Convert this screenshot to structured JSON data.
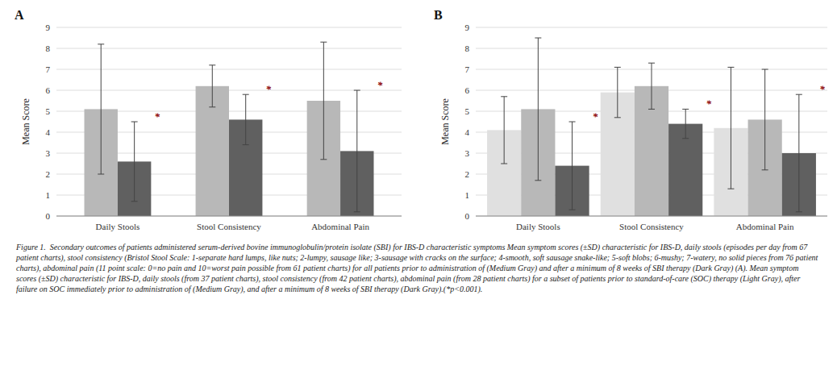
{
  "chart_data": [
    {
      "type": "bar",
      "title": "A",
      "categories": [
        "Daily Stools",
        "Stool Consistency",
        "Abdominal Pain"
      ],
      "series": [
        {
          "color": "#b8b8b8",
          "values": [
            5.1,
            6.2,
            5.5
          ],
          "errors": [
            3.1,
            1.0,
            2.8
          ]
        },
        {
          "color": "#606060",
          "values": [
            2.6,
            4.6,
            3.1
          ],
          "errors": [
            1.9,
            1.2,
            2.9
          ]
        }
      ],
      "y_label": "Mean Score",
      "ylim": [
        0,
        9
      ],
      "yticks": [
        0,
        1,
        2,
        3,
        4,
        5,
        6,
        7,
        8,
        9
      ],
      "grid": true,
      "annotations": [
        {
          "text": "*",
          "color": "#8B0000",
          "series": 1,
          "category": 0
        },
        {
          "text": "*",
          "color": "#8B0000",
          "series": 1,
          "category": 1
        },
        {
          "text": "*",
          "color": "#8B0000",
          "series": 1,
          "category": 2
        }
      ]
    },
    {
      "type": "bar",
      "title": "B",
      "categories": [
        "Daily Stools",
        "Stool Consistency",
        "Abdominal Pain"
      ],
      "series": [
        {
          "color": "#e0e0e0",
          "values": [
            4.1,
            5.9,
            4.2
          ],
          "errors": [
            1.6,
            1.2,
            2.9
          ]
        },
        {
          "color": "#b8b8b8",
          "values": [
            5.1,
            6.2,
            4.6
          ],
          "errors": [
            3.4,
            1.1,
            2.4
          ]
        },
        {
          "color": "#606060",
          "values": [
            2.4,
            4.4,
            3.0
          ],
          "errors": [
            2.1,
            0.7,
            2.8
          ]
        }
      ],
      "y_label": "Mean Score",
      "ylim": [
        0,
        9
      ],
      "yticks": [
        0,
        1,
        2,
        3,
        4,
        5,
        6,
        7,
        8,
        9
      ],
      "grid": true,
      "annotations": [
        {
          "text": "*",
          "color": "#8B0000",
          "series": 2,
          "category": 0
        },
        {
          "text": "*",
          "color": "#8B0000",
          "series": 2,
          "category": 1
        },
        {
          "text": "*",
          "color": "#8B0000",
          "series": 2,
          "category": 2
        }
      ]
    }
  ],
  "caption": "Figure 1.  Secondary outcomes of patients administered serum-derived bovine immunoglobulin/protein isolate (SBI) for IBS-D characteristic symptoms Mean symptom scores (±SD) characteristic for IBS-D, daily stools (episodes per day from 67 patient charts), stool consistency (Bristol Stool Scale: 1-separate hard lumps, like nuts; 2-lumpy, sausage like; 3-sausage with cracks on the surface; 4-smooth, soft sausage snake-like; 5-soft blobs; 6-mushy; 7-watery, no solid pieces from 76 patient charts), abdominal pain (11 point scale: 0=no pain and 10=worst pain possible from 61 patient charts) for all patients prior to administration of (Medium Gray) and after a minimum of 8 weeks of SBI therapy (Dark Gray) (A). Mean symptom scores (±SD) characteristic for IBS-D, daily stools (from 37 patient charts), stool consistency (from 42 patient charts), abdominal pain (from 28 patient charts) for a subset of patients prior to standard-of-care (SOC) therapy (Light Gray), after failure on SOC immediately prior to administration of (Medium Gray), and after a minimum of 8 weeks of SBI therapy (Dark Gray).(*p<0.001)."
}
